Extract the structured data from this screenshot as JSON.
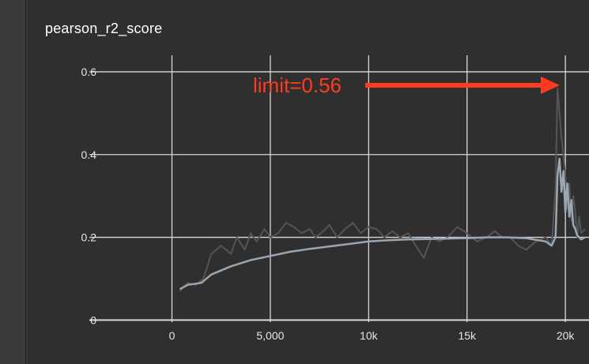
{
  "panel": {
    "title": "pearson_r2_score"
  },
  "annotation": {
    "text": "limit=0.56",
    "color": "#ff3b1f"
  },
  "colors": {
    "background": "#2f2f2f",
    "grid": "#d9d9d9",
    "raw_series": "#555555",
    "smoothed_series": "#9aa6b2"
  },
  "chart_data": {
    "type": "line",
    "title": "pearson_r2_score",
    "xlim": [
      -4200,
      21200
    ],
    "ylim": [
      -0.005,
      0.64
    ],
    "x_ticks": [
      0,
      5000,
      10000,
      15000,
      20000
    ],
    "x_tick_labels": [
      "0",
      "5,000",
      "10k",
      "15k",
      "20k"
    ],
    "y_ticks": [
      0,
      0.2,
      0.4,
      0.6
    ],
    "y_tick_labels": [
      "0",
      "0.2",
      "0.4",
      "0.6"
    ],
    "grid": true,
    "series": [
      {
        "role": "raw",
        "x": [
          400,
          800,
          1200,
          1600,
          2000,
          2500,
          3000,
          3300,
          3700,
          4000,
          4300,
          4700,
          5000,
          5400,
          5800,
          6200,
          6600,
          7000,
          7300,
          7700,
          8000,
          8400,
          8800,
          9200,
          9600,
          10000,
          10400,
          10800,
          11200,
          11600,
          12000,
          12400,
          12800,
          13200,
          13600,
          14000,
          14500,
          15000,
          15500,
          16000,
          16400,
          16800,
          17200,
          17600,
          18000,
          18500,
          19000,
          19300,
          19500,
          19600,
          19700,
          19800,
          19900,
          20000,
          20100,
          20200,
          20300,
          20400,
          20500,
          20600,
          20700,
          20800,
          21000
        ],
        "y": [
          0.07,
          0.09,
          0.085,
          0.1,
          0.16,
          0.18,
          0.16,
          0.2,
          0.17,
          0.21,
          0.19,
          0.22,
          0.2,
          0.21,
          0.235,
          0.225,
          0.21,
          0.22,
          0.2,
          0.215,
          0.23,
          0.2,
          0.22,
          0.235,
          0.21,
          0.225,
          0.22,
          0.2,
          0.215,
          0.2,
          0.21,
          0.18,
          0.15,
          0.2,
          0.19,
          0.2,
          0.225,
          0.21,
          0.19,
          0.2,
          0.215,
          0.2,
          0.2,
          0.18,
          0.17,
          0.19,
          0.2,
          0.18,
          0.32,
          0.56,
          0.5,
          0.44,
          0.4,
          0.35,
          0.27,
          0.33,
          0.24,
          0.3,
          0.26,
          0.2,
          0.25,
          0.21,
          0.22
        ]
      },
      {
        "role": "smoothed",
        "x": [
          400,
          800,
          1500,
          2000,
          3000,
          4000,
          5000,
          6000,
          7000,
          8000,
          9000,
          10000,
          11000,
          12000,
          13000,
          14000,
          15000,
          16000,
          17000,
          18000,
          19000,
          19300,
          19500,
          19600,
          19700,
          19800,
          19900,
          20000,
          20100,
          20200,
          20300,
          20400,
          20500,
          20600,
          20800,
          21000
        ],
        "y": [
          0.075,
          0.085,
          0.09,
          0.11,
          0.13,
          0.145,
          0.155,
          0.165,
          0.172,
          0.178,
          0.184,
          0.19,
          0.193,
          0.195,
          0.196,
          0.197,
          0.198,
          0.2,
          0.2,
          0.198,
          0.19,
          0.18,
          0.2,
          0.35,
          0.39,
          0.31,
          0.36,
          0.26,
          0.33,
          0.25,
          0.29,
          0.23,
          0.22,
          0.205,
          0.195,
          0.2
        ]
      }
    ]
  }
}
